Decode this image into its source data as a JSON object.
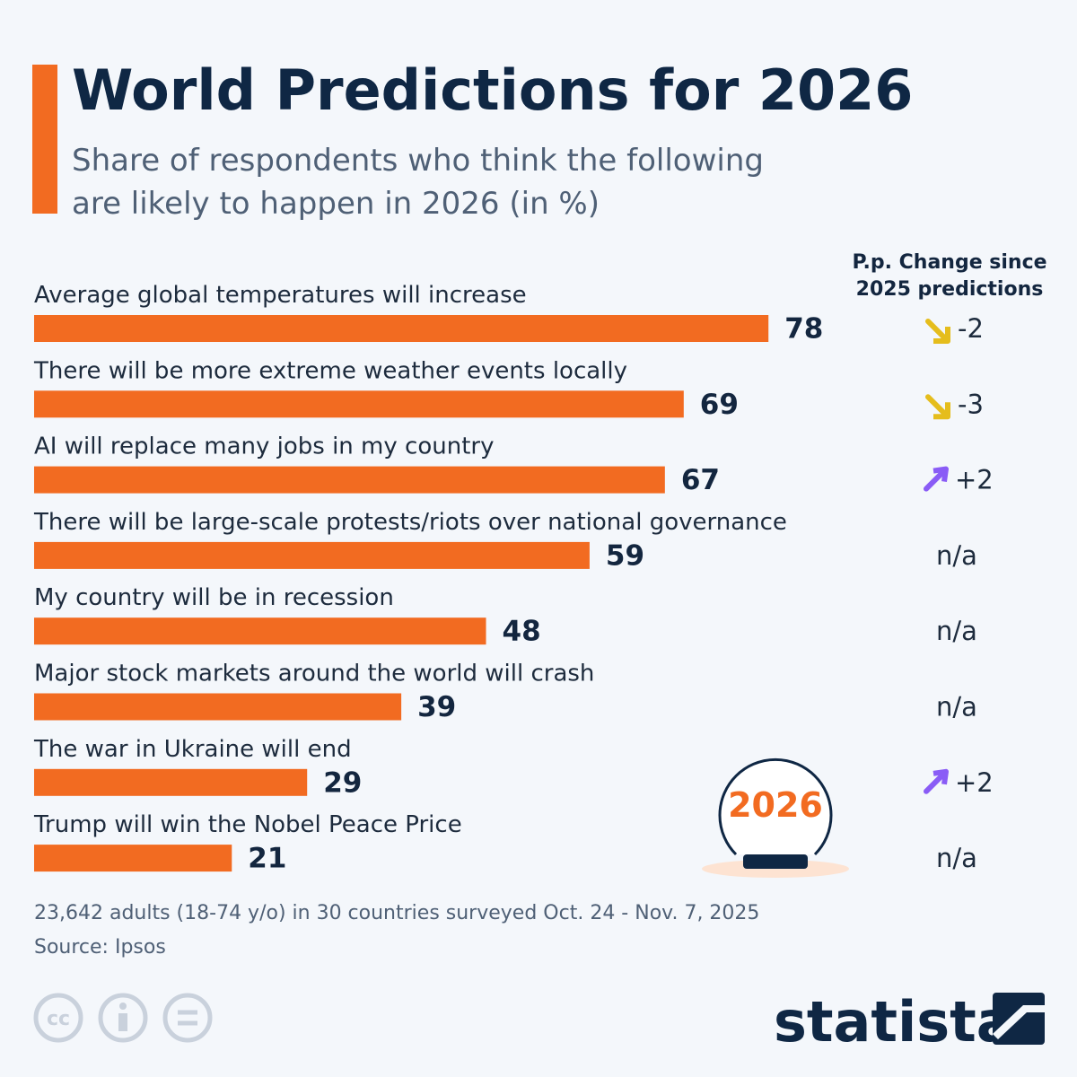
{
  "chart_data": {
    "type": "hbar",
    "title": "World Predictions for 2026",
    "subtitle": [
      "Share of respondents who think the following",
      "are likely to happen in 2026 (in %)"
    ],
    "categories": [
      "Average global temperatures will increase",
      "There will be more extreme weather events locally",
      "AI will replace many jobs in my country",
      "There will be large-scale protests/riots over national governance",
      "My country will be in recession",
      "Major stock markets around the world will crash",
      "The war in Ukraine will end",
      "Trump will win the Nobel Peace Price"
    ],
    "values": [
      78,
      69,
      67,
      59,
      48,
      39,
      29,
      21
    ],
    "color": "#f26b21",
    "change_header": [
      "P.p. Change since",
      "2025 predictions"
    ],
    "changes": [
      "-2",
      "-3",
      "+2",
      "n/a",
      "n/a",
      "n/a",
      "+2",
      "n/a"
    ]
  },
  "badge": "2026",
  "footer": {
    "note": "23,642 adults (18-74 y/o) in 30 countries surveyed Oct. 24 - Nov. 7, 2025",
    "source": "Source: Ipsos"
  },
  "license": "cc",
  "logo": "statista"
}
